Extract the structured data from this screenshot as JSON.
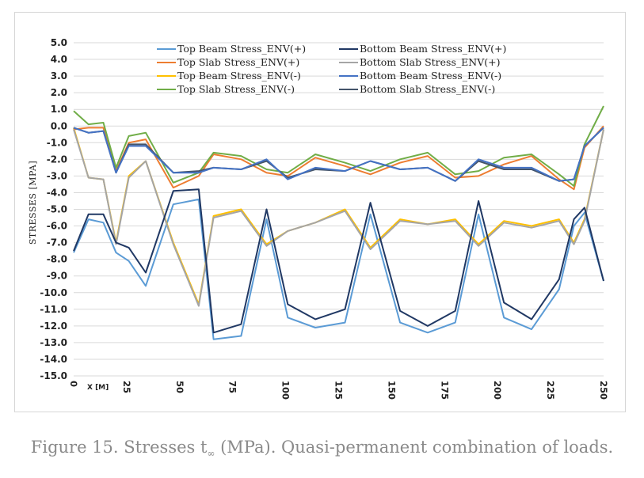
{
  "caption": {
    "prefix": "Figure 15. Stresses t",
    "sub": "∞",
    "suffix": " (MPa). Quasi-permanent combination of loads."
  },
  "chart_data": {
    "type": "line",
    "ylabel": "STRESSES [MPA]",
    "xlabel": "X [M]",
    "xlim": [
      0,
      250
    ],
    "ylim": [
      -15,
      5
    ],
    "xticks": [
      "0",
      "25",
      "50",
      "75",
      "100",
      "125",
      "150",
      "175",
      "200",
      "225",
      "250"
    ],
    "yticks": [
      "5.0",
      "4.0",
      "3.0",
      "2.0",
      "1.0",
      "0.0",
      "-1.0",
      "-2.0",
      "-3.0",
      "-4.0",
      "-5.0",
      "-6.0",
      "-7.0",
      "-8.0",
      "-9.0",
      "-10.0",
      "-11.0",
      "-12.0",
      "-13.0",
      "-14.0",
      "-15.0"
    ],
    "grid": true,
    "legend_position": "top",
    "x": [
      0,
      7,
      14,
      20,
      26,
      34,
      47,
      59,
      66,
      79,
      91,
      101,
      114,
      128,
      140,
      154,
      167,
      180,
      191,
      203,
      216,
      229,
      236,
      241,
      250
    ],
    "series": [
      {
        "name": "Top Beam Stress_ENV(+)",
        "color": "#5b9bd5",
        "values": [
          -7.6,
          -5.6,
          -5.8,
          -7.6,
          -8.1,
          -9.6,
          -4.7,
          -4.4,
          -12.8,
          -12.6,
          -5.6,
          -11.5,
          -12.1,
          -11.8,
          -5.3,
          -11.8,
          -12.4,
          -11.8,
          -5.3,
          -11.5,
          -12.2,
          -9.8,
          -6.0,
          -5.2,
          -9.3
        ]
      },
      {
        "name": "Top Slab Stress_ENV(+)",
        "color": "#ed7d31",
        "values": [
          -0.2,
          -0.1,
          -0.1,
          -2.7,
          -1.0,
          -0.8,
          -3.7,
          -3.0,
          -1.7,
          -2.0,
          -2.8,
          -3.0,
          -1.9,
          -2.4,
          -2.9,
          -2.2,
          -1.8,
          -3.1,
          -3.0,
          -2.3,
          -1.8,
          -3.2,
          -3.8,
          -1.3,
          0.0
        ]
      },
      {
        "name": "Top Beam Stress_ENV(-)",
        "color": "#ffc000",
        "values": [
          -0.1,
          -3.1,
          -3.2,
          -7.0,
          -3.0,
          -2.1,
          -7.0,
          -10.7,
          -5.4,
          -5.0,
          -7.1,
          -6.3,
          -5.8,
          -5.0,
          -7.3,
          -5.6,
          -5.9,
          -5.6,
          -7.1,
          -5.7,
          -6.0,
          -5.6,
          -7.0,
          -5.6,
          -0.2
        ]
      },
      {
        "name": "Top Slab Stress_ENV(-)",
        "color": "#70ad47",
        "values": [
          0.9,
          0.1,
          0.2,
          -2.5,
          -0.6,
          -0.4,
          -3.4,
          -2.8,
          -1.6,
          -1.8,
          -2.6,
          -2.8,
          -1.7,
          -2.2,
          -2.7,
          -2.0,
          -1.6,
          -2.9,
          -2.7,
          -1.9,
          -1.7,
          -2.9,
          -3.6,
          -1.1,
          1.2
        ]
      },
      {
        "name": "Bottom Beam Stress_ENV(+)",
        "color": "#203864",
        "values": [
          -7.5,
          -5.3,
          -5.3,
          -7.0,
          -7.3,
          -8.8,
          -3.9,
          -3.8,
          -12.4,
          -11.9,
          -5.0,
          -10.7,
          -11.6,
          -11.0,
          -4.6,
          -11.1,
          -12.0,
          -11.1,
          -4.5,
          -10.6,
          -11.6,
          -9.2,
          -5.6,
          -4.9,
          -9.3
        ]
      },
      {
        "name": "Bottom Slab Stress_ENV(+)",
        "color": "#a5a5a5",
        "values": [
          -0.2,
          -3.1,
          -3.2,
          -7.1,
          -3.1,
          -2.1,
          -7.1,
          -10.8,
          -5.5,
          -5.1,
          -7.2,
          -6.3,
          -5.8,
          -5.1,
          -7.4,
          -5.7,
          -5.9,
          -5.7,
          -7.2,
          -5.8,
          -6.1,
          -5.7,
          -7.1,
          -5.7,
          -0.2
        ]
      },
      {
        "name": "Bottom Beam Stress_ENV(-)",
        "color": "#4472c4",
        "values": [
          -0.1,
          -0.4,
          -0.3,
          -2.8,
          -1.2,
          -1.2,
          -2.8,
          -2.8,
          -2.5,
          -2.6,
          -2.0,
          -3.2,
          -2.5,
          -2.7,
          -2.1,
          -2.6,
          -2.5,
          -3.3,
          -2.0,
          -2.5,
          -2.5,
          -3.3,
          -3.2,
          -1.2,
          -0.1
        ]
      },
      {
        "name": "Bottom Slab Stress_ENV(-)",
        "color": "#44546a",
        "values": [
          -0.1,
          -0.4,
          -0.3,
          -2.8,
          -1.1,
          -1.1,
          -2.8,
          -2.7,
          -2.5,
          -2.6,
          -2.1,
          -3.1,
          -2.6,
          -2.7,
          -2.1,
          -2.6,
          -2.5,
          -3.3,
          -2.1,
          -2.6,
          -2.6,
          -3.3,
          -3.2,
          -1.2,
          -0.1
        ]
      }
    ]
  }
}
